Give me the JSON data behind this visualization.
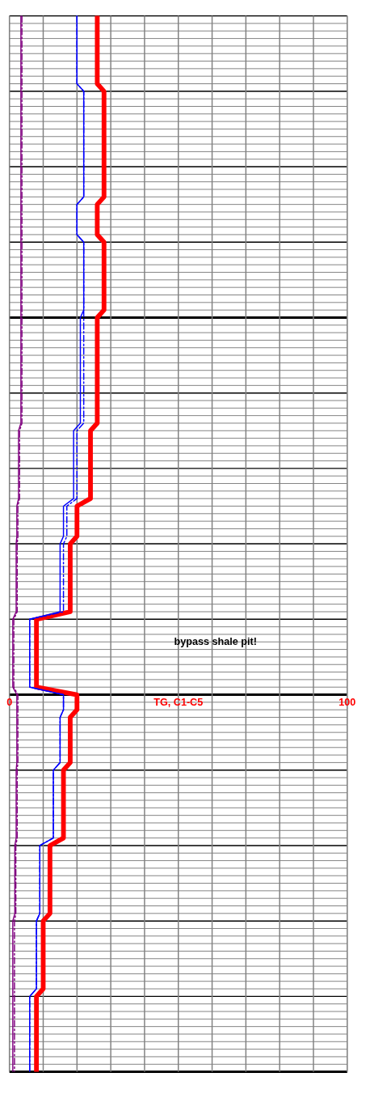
{
  "chart_data": {
    "type": "line",
    "orientation": "horizontal",
    "xlabel": "TG, C1-C5",
    "categories": [
      null,
      null,
      null,
      null,
      null,
      null,
      null,
      null,
      null,
      null,
      null,
      null,
      null,
      null,
      null,
      null,
      null,
      null,
      null,
      null,
      null,
      null,
      null,
      null,
      null,
      null,
      null,
      null,
      null,
      null,
      null,
      null,
      null,
      null,
      null,
      null,
      null,
      null,
      null,
      null,
      null,
      null,
      null,
      null,
      null,
      null,
      null,
      null,
      null,
      null,
      null,
      null,
      null,
      null,
      null,
      null,
      null,
      null,
      null,
      null,
      null,
      null,
      null,
      null,
      null,
      null,
      null,
      null,
      null,
      null,
      null,
      null,
      null,
      null,
      null,
      null,
      null,
      null,
      null,
      null,
      null,
      null,
      null,
      null,
      null,
      null,
      null,
      null,
      null,
      null,
      null,
      null,
      null,
      null,
      null,
      null,
      null,
      null,
      null,
      null,
      null,
      null,
      null,
      null,
      null,
      null,
      null,
      null,
      null,
      null,
      null,
      null,
      null,
      null,
      null,
      null,
      null,
      null,
      null,
      null,
      null,
      null,
      null,
      null,
      null,
      null,
      null,
      null,
      null,
      null,
      null,
      null,
      null,
      null,
      null,
      null,
      null,
      null,
      null,
      null,
      null
    ],
    "xlim": [
      0,
      100
    ],
    "xticks": [
      0,
      {
        "value": 10,
        "label": null
      },
      {
        "value": 20,
        "label": null
      },
      {
        "value": 30,
        "label": null
      },
      {
        "value": 40,
        "label": null
      },
      {
        "value": 50,
        "label": null
      },
      {
        "value": 60,
        "label": null
      },
      {
        "value": 70,
        "label": null
      },
      {
        "value": 80,
        "label": null
      },
      {
        "value": 90,
        "label": null
      },
      100
    ],
    "grid": true,
    "series": [
      {
        "color": "#ff0000",
        "line_style": "solid",
        "values": [
          26,
          26,
          26,
          26,
          26,
          26,
          26,
          26,
          26,
          26,
          28,
          28,
          28,
          28,
          28,
          28,
          28,
          28,
          28,
          28,
          28,
          28,
          28,
          28,
          28,
          26,
          26,
          26,
          26,
          26,
          28,
          28,
          28,
          28,
          28,
          28,
          28,
          28,
          28,
          28,
          26,
          26,
          26,
          26,
          26,
          26,
          26,
          26,
          26,
          26,
          26,
          26,
          26,
          26,
          26,
          24,
          24,
          24,
          24,
          24,
          24,
          24,
          24,
          24,
          24,
          20,
          20,
          20,
          20,
          20,
          18,
          18,
          18,
          18,
          18,
          18,
          18,
          18,
          18,
          18,
          8,
          8,
          8,
          8,
          8,
          8,
          8,
          8,
          8,
          8,
          20,
          20,
          20,
          18,
          18,
          18,
          18,
          18,
          18,
          18,
          16,
          16,
          16,
          16,
          16,
          16,
          16,
          16,
          16,
          16,
          12,
          12,
          12,
          12,
          12,
          12,
          12,
          12,
          12,
          12,
          10,
          10,
          10,
          10,
          10,
          10,
          10,
          10,
          10,
          10,
          8,
          8,
          8,
          8,
          8,
          8,
          8,
          8,
          8,
          8,
          8
        ]
      },
      {
        "color": "#0000ff",
        "line_style": "solid",
        "values": [
          20,
          20,
          20,
          20,
          20,
          20,
          20,
          20,
          20,
          20,
          22,
          22,
          22,
          22,
          22,
          22,
          22,
          22,
          22,
          22,
          22,
          22,
          22,
          22,
          22,
          20,
          20,
          20,
          20,
          20,
          22,
          22,
          22,
          22,
          22,
          22,
          22,
          22,
          22,
          22,
          21,
          21,
          21,
          21,
          21,
          21,
          21,
          21,
          21,
          21,
          21,
          21,
          21,
          21,
          21,
          19,
          19,
          19,
          19,
          19,
          19,
          19,
          19,
          19,
          19,
          16,
          16,
          16,
          16,
          16,
          15,
          15,
          15,
          15,
          15,
          15,
          15,
          15,
          15,
          15,
          6,
          6,
          6,
          6,
          6,
          6,
          6,
          6,
          6,
          6,
          16,
          16,
          16,
          15,
          15,
          15,
          15,
          15,
          15,
          15,
          13,
          13,
          13,
          13,
          13,
          13,
          13,
          13,
          13,
          13,
          9,
          9,
          9,
          9,
          9,
          9,
          9,
          9,
          9,
          9,
          8,
          8,
          8,
          8,
          8,
          8,
          8,
          8,
          8,
          8,
          6,
          6,
          6,
          6,
          6,
          6,
          6,
          6,
          6,
          6,
          6
        ]
      },
      {
        "color": "#0000ff",
        "line_style": "dashdot",
        "values": [
          20,
          20,
          20,
          20,
          20,
          20,
          20,
          20,
          20,
          20,
          22,
          22,
          22,
          22,
          22,
          22,
          22,
          22,
          22,
          22,
          22,
          22,
          22,
          22,
          22,
          20,
          20,
          20,
          20,
          20,
          22,
          22,
          22,
          22,
          22,
          22,
          22,
          22,
          22,
          22,
          22,
          22,
          22,
          22,
          22,
          22,
          22,
          22,
          22,
          22,
          22,
          22,
          22,
          22,
          22,
          20,
          20,
          20,
          20,
          20,
          20,
          20,
          20,
          20,
          20,
          17,
          17,
          17,
          17,
          17,
          16,
          16,
          16,
          16,
          16,
          16,
          16,
          16,
          16,
          16,
          6,
          6,
          6,
          6,
          6,
          6,
          6,
          6,
          6,
          6,
          16,
          16,
          16,
          15,
          15,
          15,
          15,
          15,
          15,
          15,
          13,
          13,
          13,
          13,
          13,
          13,
          13,
          13,
          13,
          13,
          9,
          9,
          9,
          9,
          9,
          9,
          9,
          9,
          9,
          9,
          8,
          8,
          8,
          8,
          8,
          8,
          8,
          8,
          8,
          8,
          6,
          6,
          6,
          6,
          6,
          6,
          6,
          6,
          6,
          6,
          6
        ]
      },
      {
        "color": "#800080",
        "line_style": "solid",
        "values": [
          3.4,
          3.4,
          3.4,
          3.4,
          3.4,
          3.4,
          3.4,
          3.4,
          3.4,
          3.4,
          3.4,
          3.4,
          3.4,
          3.4,
          3.4,
          3.4,
          3.4,
          3.4,
          3.4,
          3.4,
          3.4,
          3.4,
          3.4,
          3.4,
          3.4,
          3.4,
          3.4,
          3.4,
          3.4,
          3.4,
          3.4,
          3.4,
          3.4,
          3.4,
          3.4,
          3.4,
          3.4,
          3.4,
          3.4,
          3.4,
          3.4,
          3.4,
          3.4,
          3.4,
          3.4,
          3.4,
          3.4,
          3.4,
          3.4,
          3.4,
          3.4,
          3.4,
          3.4,
          3.4,
          3.4,
          2.7,
          2.7,
          2.7,
          2.7,
          2.7,
          2.7,
          2.7,
          2.7,
          2.7,
          2.7,
          2.2,
          2.2,
          2.2,
          2.2,
          2.2,
          2,
          2,
          2,
          2,
          2,
          2,
          2,
          2,
          2,
          2,
          1,
          1,
          1,
          1,
          1,
          1,
          1,
          1,
          1,
          1,
          2.2,
          2.2,
          2.2,
          2.2,
          2.2,
          2.2,
          2.2,
          2.2,
          2.2,
          2.2,
          2,
          2,
          2,
          2,
          2,
          2,
          2,
          2,
          2,
          2,
          1.6,
          1.6,
          1.6,
          1.6,
          1.6,
          1.6,
          1.6,
          1.6,
          1.6,
          1.6,
          1,
          1,
          1,
          1,
          1,
          1,
          1,
          1,
          1,
          1,
          1,
          1,
          1,
          1,
          1,
          1,
          1,
          1,
          1,
          1,
          1
        ]
      },
      {
        "color": "#800080",
        "line_style": "dashdot",
        "values": [
          3.7,
          3.7,
          3.7,
          3.7,
          3.7,
          3.7,
          3.7,
          3.7,
          3.7,
          3.7,
          3.7,
          3.7,
          3.7,
          3.7,
          3.7,
          3.7,
          3.7,
          3.7,
          3.7,
          3.7,
          3.7,
          3.7,
          3.7,
          3.7,
          3.7,
          3.7,
          3.7,
          3.7,
          3.7,
          3.7,
          3.7,
          3.7,
          3.7,
          3.7,
          3.7,
          3.7,
          3.7,
          3.7,
          3.7,
          3.7,
          3.7,
          3.7,
          3.7,
          3.7,
          3.7,
          3.7,
          3.7,
          3.7,
          3.7,
          3.7,
          3.7,
          3.7,
          3.7,
          3.7,
          3.7,
          3,
          3,
          3,
          3,
          3,
          3,
          3,
          3,
          3,
          3,
          2.5,
          2.5,
          2.5,
          2.5,
          2.5,
          2.3,
          2.3,
          2.3,
          2.3,
          2.3,
          2.3,
          2.3,
          2.3,
          2.3,
          2.3,
          1.3,
          1.3,
          1.3,
          1.3,
          1.3,
          1.3,
          1.3,
          1.3,
          1.3,
          1.3,
          2.5,
          2.5,
          2.5,
          2.5,
          2.5,
          2.5,
          2.5,
          2.5,
          2.5,
          2.5,
          2.3,
          2.3,
          2.3,
          2.3,
          2.3,
          2.3,
          2.3,
          2.3,
          2.3,
          2.3,
          1.9,
          1.9,
          1.9,
          1.9,
          1.9,
          1.9,
          1.9,
          1.9,
          1.9,
          1.9,
          1.5,
          1.5,
          1.5,
          1.5,
          1.5,
          1.5,
          1.5,
          1.5,
          1.5,
          1.5,
          1.5,
          1.5,
          1.5,
          1.5,
          1.5,
          1.5,
          1.5,
          1.5,
          1.5,
          1.5,
          1.5
        ]
      }
    ],
    "annotations": [
      "bypass shale pit!"
    ]
  }
}
